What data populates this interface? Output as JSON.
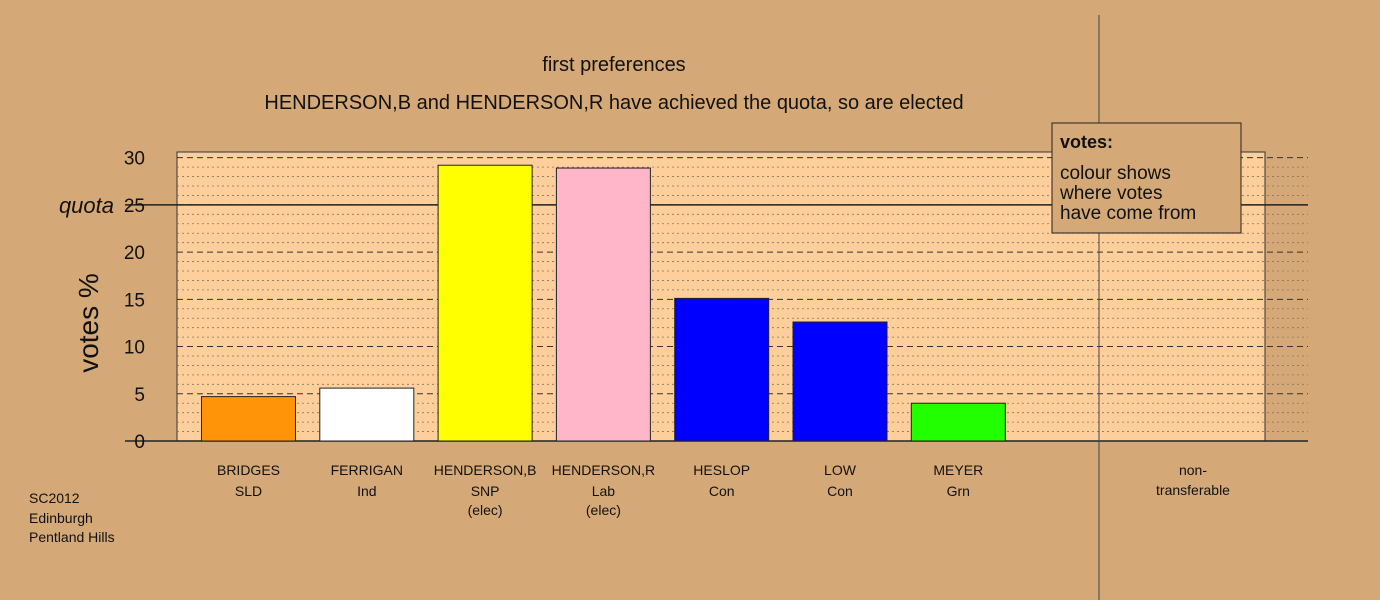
{
  "chart_data": {
    "type": "bar",
    "title": "first preferences",
    "subtitle": "HENDERSON,B and HENDERSON,R have achieved the quota, so are elected",
    "ylabel": "votes %",
    "ylim": [
      0,
      30.6
    ],
    "yticks": [
      0,
      5,
      10,
      15,
      20,
      25,
      30
    ],
    "quota": 25,
    "quota_label": "quota",
    "grid": true,
    "categories": [
      {
        "name": "BRIDGES",
        "party": "SLD",
        "note": "",
        "value": 4.7,
        "color": "#ff9408"
      },
      {
        "name": "FERRIGAN",
        "party": "Ind",
        "note": "",
        "value": 5.6,
        "color": "#ffffff"
      },
      {
        "name": "HENDERSON,B",
        "party": "SNP",
        "note": "(elec)",
        "value": 29.2,
        "color": "#ffff00"
      },
      {
        "name": "HENDERSON,R",
        "party": "Lab",
        "note": "(elec)",
        "value": 28.9,
        "color": "#ffb6c8"
      },
      {
        "name": "HESLOP",
        "party": "Con",
        "note": "",
        "value": 15.1,
        "color": "#0000ff"
      },
      {
        "name": "LOW",
        "party": "Con",
        "note": "",
        "value": 12.6,
        "color": "#0000ff"
      },
      {
        "name": "MEYER",
        "party": "Grn",
        "note": "",
        "value": 4.0,
        "color": "#22ff00"
      }
    ],
    "nontransferable": {
      "label_line1": "non-",
      "label_line2": "transferable",
      "value": 0
    },
    "legend": {
      "title": "votes:",
      "lines": [
        "colour shows",
        "where votes",
        "have come from"
      ],
      "placement": "top-right"
    }
  },
  "footer": {
    "lines": [
      "SC2012",
      "Edinburgh",
      "Pentland Hills"
    ]
  },
  "colors": {
    "background": "#d4a977",
    "plot_area": "#fecf9a"
  }
}
